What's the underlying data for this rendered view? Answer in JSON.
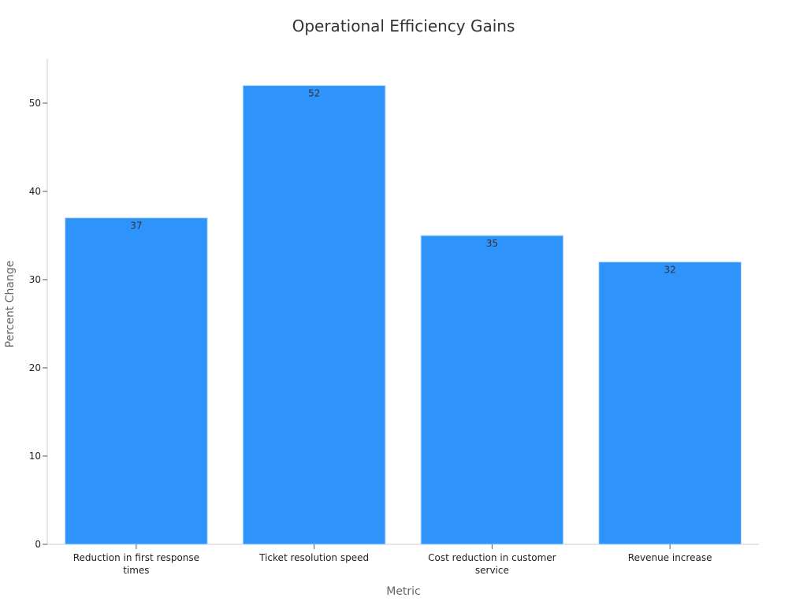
{
  "chart_data": {
    "type": "bar",
    "title": "Operational Efficiency Gains",
    "xlabel": "Metric",
    "ylabel": "Percent Change",
    "categories": [
      [
        "Reduction in first response",
        "times"
      ],
      [
        "Ticket resolution speed"
      ],
      [
        "Cost reduction in customer",
        "service"
      ],
      [
        "Revenue increase"
      ]
    ],
    "values": [
      37,
      52,
      35,
      32
    ],
    "value_labels": [
      "37",
      "52",
      "35",
      "32"
    ],
    "yticks": [
      0,
      10,
      20,
      30,
      40,
      50
    ],
    "ytick_labels": [
      "0",
      "10",
      "20",
      "30",
      "40",
      "50"
    ],
    "ylim": [
      0,
      55
    ],
    "grid": false,
    "legend": "none",
    "bar_color": "#2e93fa",
    "bar_stroke": "#b7d9fd",
    "axis_color": "#cccccc"
  }
}
